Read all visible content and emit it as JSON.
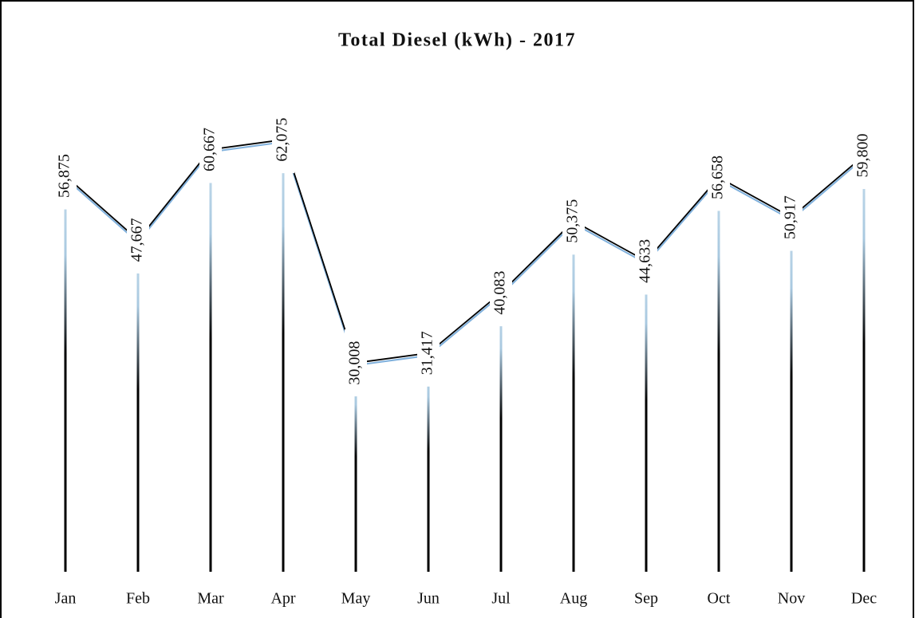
{
  "chart_data": {
    "type": "line",
    "title": "Total Diesel (kWh) - 2017",
    "categories": [
      "Jan",
      "Feb",
      "Mar",
      "Apr",
      "May",
      "Jun",
      "Jul",
      "Aug",
      "Sep",
      "Oct",
      "Nov",
      "Dec"
    ],
    "values": [
      56875,
      47667,
      60667,
      62075,
      30008,
      31417,
      40083,
      50375,
      44633,
      56658,
      50917,
      59800
    ],
    "value_labels": [
      "56,875",
      "47,667",
      "60,667",
      "62,075",
      "30,008",
      "31,417",
      "40,083",
      "50,375",
      "44,633",
      "56,658",
      "50,917",
      "59,800"
    ],
    "color": "#7fb0dc",
    "ylim": [
      0,
      70000
    ]
  }
}
